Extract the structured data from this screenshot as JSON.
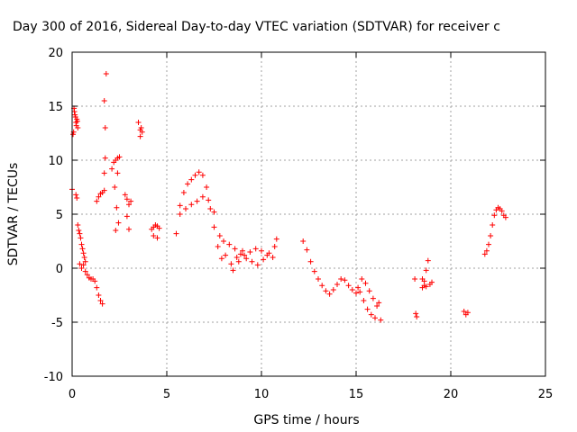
{
  "chart_data": {
    "type": "scatter",
    "title": "Day 300 of 2016, Sidereal Day-to-day VTEC variation (SDTVAR) for receiver c",
    "xlabel": "GPS time / hours",
    "ylabel": "SDTVAR / TECUs",
    "xlim": [
      0,
      25
    ],
    "ylim": [
      -10,
      20
    ],
    "xticks": [
      "0",
      "5",
      "10",
      "15",
      "20",
      "25"
    ],
    "yticks": [
      "-10",
      "-5",
      "0",
      "5",
      "10",
      "15",
      "20"
    ],
    "grid": true,
    "marker": "+",
    "series": [
      {
        "color": "#ff0000",
        "x": [
          0.0,
          0.05,
          0.1,
          0.15,
          0.2,
          0.25,
          0.3,
          0.08,
          0.12,
          0.18,
          0.22,
          0.28,
          0.2,
          0.25,
          0.3,
          0.35,
          0.4,
          0.45,
          0.5,
          0.55,
          0.6,
          0.65,
          0.7,
          0.4,
          0.5,
          0.6,
          0.7,
          0.8,
          0.9,
          1.0,
          1.1,
          1.2,
          1.3,
          1.4,
          1.5,
          1.6,
          1.3,
          1.4,
          1.5,
          1.6,
          1.7,
          1.7,
          1.75,
          1.75,
          1.7,
          1.8,
          2.1,
          2.2,
          2.3,
          2.4,
          2.5,
          2.25,
          2.35,
          2.45,
          2.3,
          2.4,
          2.8,
          2.9,
          3.0,
          3.1,
          2.9,
          3.0,
          3.5,
          3.6,
          3.7,
          3.6,
          3.65,
          4.2,
          4.3,
          4.4,
          4.5,
          4.6,
          4.3,
          4.5,
          5.5,
          5.7,
          5.9,
          6.1,
          6.3,
          6.5,
          6.7,
          6.9,
          7.1,
          7.3,
          7.5,
          7.7,
          7.9,
          5.7,
          6.0,
          6.3,
          6.6,
          6.9,
          7.2,
          7.5,
          7.8,
          8.1,
          8.4,
          8.7,
          9.0,
          8.0,
          8.3,
          8.6,
          8.9,
          9.2,
          9.5,
          9.8,
          10.1,
          10.4,
          10.7,
          8.5,
          8.8,
          9.1,
          9.4,
          9.7,
          10.0,
          10.3,
          10.6,
          10.8,
          12.2,
          12.4,
          12.6,
          12.8,
          13.0,
          13.2,
          13.4,
          13.6,
          13.8,
          14.0,
          14.2,
          14.4,
          14.6,
          14.8,
          15.0,
          15.1,
          15.3,
          15.5,
          15.7,
          15.9,
          16.1,
          16.3,
          15.2,
          15.4,
          15.6,
          15.8,
          16.0,
          16.2,
          18.1,
          18.15,
          18.2,
          18.5,
          18.6,
          18.7,
          18.8,
          18.9,
          19.0,
          18.5,
          18.6,
          18.7,
          20.7,
          20.8,
          20.9,
          21.8,
          21.9,
          22.0,
          22.1,
          22.2,
          22.3,
          22.4,
          22.5,
          22.6,
          22.7,
          22.8,
          22.9
        ],
        "y": [
          7.3,
          12.4,
          14.8,
          14.2,
          13.5,
          13.8,
          13.0,
          12.6,
          14.5,
          14.0,
          13.2,
          13.6,
          6.8,
          6.5,
          4.0,
          3.5,
          3.2,
          2.8,
          2.2,
          1.8,
          1.4,
          1.0,
          0.6,
          0.4,
          0.0,
          0.3,
          -0.3,
          -0.6,
          -0.9,
          -1.0,
          -1.0,
          -1.2,
          -1.8,
          -2.5,
          -3.0,
          -3.3,
          6.2,
          6.6,
          6.9,
          7.0,
          7.2,
          8.8,
          10.2,
          13.0,
          15.5,
          18.0,
          9.2,
          9.8,
          10.0,
          10.2,
          10.3,
          7.5,
          5.6,
          4.2,
          3.5,
          8.8,
          6.8,
          6.4,
          5.9,
          6.2,
          4.8,
          3.6,
          13.5,
          12.8,
          12.6,
          12.2,
          13.0,
          3.6,
          3.8,
          4.0,
          3.9,
          3.7,
          3.0,
          2.8,
          3.2,
          5.8,
          7.0,
          7.8,
          8.2,
          8.6,
          8.9,
          8.6,
          7.5,
          5.5,
          3.8,
          2.0,
          0.9,
          5.0,
          5.5,
          5.9,
          6.2,
          6.6,
          6.3,
          5.2,
          3.0,
          1.2,
          0.4,
          1.0,
          1.6,
          2.5,
          2.2,
          1.8,
          1.3,
          0.9,
          0.6,
          0.3,
          0.8,
          1.4,
          2.0,
          -0.2,
          0.6,
          1.2,
          1.5,
          1.8,
          1.6,
          1.2,
          1.0,
          2.7,
          2.5,
          1.7,
          0.6,
          -0.3,
          -1.0,
          -1.6,
          -2.1,
          -2.4,
          -2.0,
          -1.5,
          -1.0,
          -1.1,
          -1.6,
          -2.0,
          -2.3,
          -1.8,
          -1.0,
          -1.4,
          -2.1,
          -2.8,
          -3.5,
          -4.8,
          -2.2,
          -3.0,
          -3.8,
          -4.3,
          -4.6,
          -3.2,
          -1.0,
          -4.2,
          -4.5,
          -1.8,
          -1.2,
          -0.2,
          0.7,
          -1.5,
          -1.3,
          -1.0,
          -1.6,
          -1.7,
          -4.0,
          -4.3,
          -4.1,
          1.3,
          1.6,
          2.2,
          3.0,
          4.0,
          4.9,
          5.4,
          5.6,
          5.5,
          5.3,
          4.9,
          4.7
        ]
      }
    ]
  }
}
